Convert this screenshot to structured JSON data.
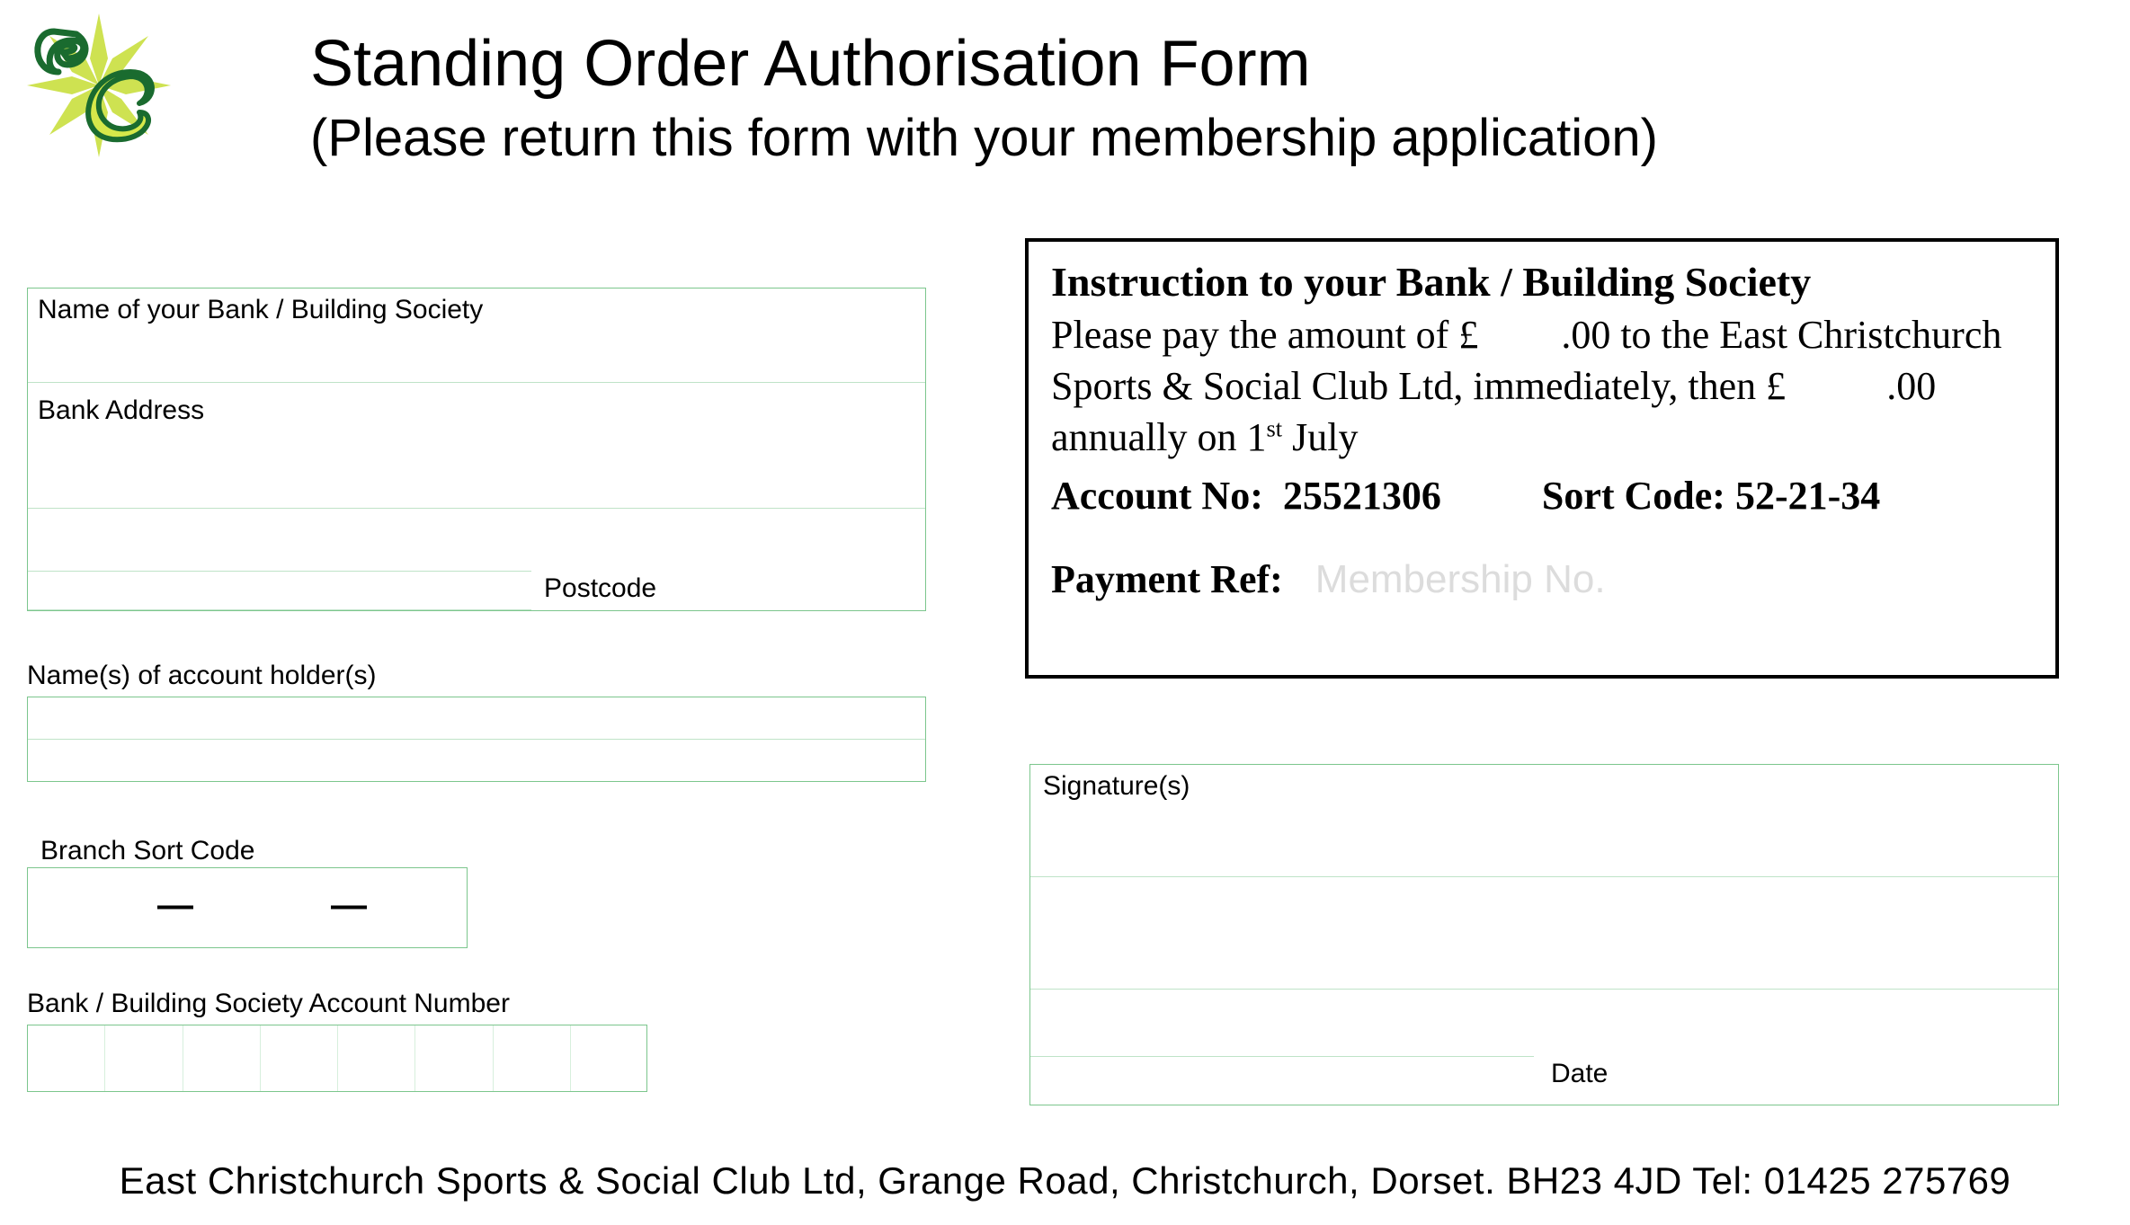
{
  "header": {
    "title": "Standing Order Authorisation Form",
    "subtitle": "(Please return this form with your membership application)"
  },
  "logo": {
    "letters": "EC",
    "primary_color": "#1a6b2f",
    "accent_color": "#d6e84a",
    "star_color": "#c9df3f"
  },
  "left_fields": {
    "bank_name_label": "Name of your Bank / Building Society",
    "bank_address_label": "Bank Address",
    "postcode_label": "Postcode",
    "account_holders_label": "Name(s) of account holder(s)",
    "branch_sort_code_label": "Branch Sort Code",
    "sort_code_sep": "—",
    "account_number_label": "Bank / Building Society Account Number",
    "account_number_cells": 8
  },
  "instruction": {
    "title": "Instruction to your Bank / Building Society",
    "line1_pre": "Please pay the amount of £",
    "line1_post": ".00 to the East Christchurch Sports & Social Club Ltd, immediately, then £",
    "line1_tail_pre": ".00 annually on 1",
    "line1_sup": "st",
    "line1_tail_post": " July",
    "account_no_label": "Account No:",
    "account_no": "25521306",
    "sort_code_label": "Sort Code:",
    "sort_code": "52-21-34",
    "payment_ref_label": "Payment Ref:",
    "payment_ref_placeholder": "Membership No."
  },
  "right_fields": {
    "signature_label": "Signature(s)",
    "date_label": "Date"
  },
  "footer": {
    "text": "East Christchurch Sports & Social Club Ltd, Grange Road, Christchurch, Dorset.  BH23 4JD     Tel:  01425 275769"
  },
  "colors": {
    "field_border": "#7cc68d",
    "field_line": "#bfe3c8",
    "placeholder": "#dcdcdc",
    "black": "#000000",
    "white": "#ffffff"
  },
  "typography": {
    "title_fontsize": 72,
    "subtitle_fontsize": 58,
    "field_label_fontsize": 30,
    "instruction_fontsize": 44,
    "footer_fontsize": 42
  }
}
